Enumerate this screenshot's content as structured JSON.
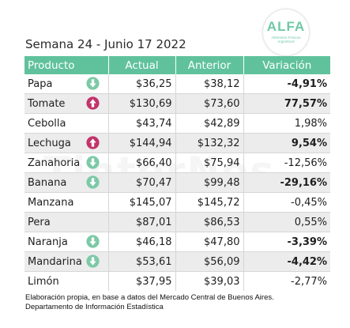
{
  "title": "Semana 24 - Junio 17 2022",
  "logo": {
    "word": "ALFA",
    "subtitle": "Alimentos Frescos Argentinos"
  },
  "watermark": "TinterNos",
  "colors": {
    "header_bg": "#60c29c",
    "arrow_down": "#7cc9a6",
    "arrow_up": "#c2336b",
    "logo": "#6fc9a5"
  },
  "table": {
    "headers": [
      "Producto",
      "Actual",
      "Anterior",
      "Variación"
    ],
    "rows": [
      {
        "product": "Papa",
        "actual": "$36,25",
        "previous": "$38,12",
        "variation": "-4,91%",
        "bold": true,
        "arrow": "down",
        "arrow_icon": "arrow-down-circle-icon",
        "arrow_left": 78
      },
      {
        "product": "Tomate",
        "actual": "$130,69",
        "previous": "$73,60",
        "variation": "77,57%",
        "bold": true,
        "arrow": "up",
        "arrow_icon": "arrow-up-circle-icon",
        "arrow_left": 78
      },
      {
        "product": "Cebolla",
        "actual": "$43,74",
        "previous": "$42,89",
        "variation": "1,98%",
        "bold": false,
        "arrow": "",
        "arrow_icon": ""
      },
      {
        "product": "Lechuga",
        "actual": "$144,94",
        "previous": "$132,32",
        "variation": "9,54%",
        "bold": true,
        "arrow": "up",
        "arrow_icon": "arrow-up-circle-icon",
        "arrow_left": 78
      },
      {
        "product": "Zanahoria",
        "actual": "$66,40",
        "previous": "$75,94",
        "variation": "-12,56%",
        "bold": false,
        "arrow": "down",
        "arrow_icon": "arrow-down-circle-icon",
        "arrow_left": 78
      },
      {
        "product": "Banana",
        "actual": "$70,47",
        "previous": "$99,48",
        "variation": "-29,16%",
        "bold": true,
        "arrow": "down",
        "arrow_icon": "arrow-down-circle-icon",
        "arrow_left": 78
      },
      {
        "product": "Manzana",
        "actual": "$145,07",
        "previous": "$145,72",
        "variation": "-0,45%",
        "bold": false,
        "arrow": "",
        "arrow_icon": ""
      },
      {
        "product": "Pera",
        "actual": "$87,01",
        "previous": "$86,53",
        "variation": "0,55%",
        "bold": false,
        "arrow": "",
        "arrow_icon": ""
      },
      {
        "product": "Naranja",
        "actual": "$46,18",
        "previous": "$47,80",
        "variation": "-3,39%",
        "bold": true,
        "arrow": "down",
        "arrow_icon": "arrow-down-circle-icon",
        "arrow_left": 78
      },
      {
        "product": "Mandarina",
        "actual": "$53,61",
        "previous": "$56,09",
        "variation": "-4,42%",
        "bold": true,
        "arrow": "down",
        "arrow_icon": "arrow-down-circle-icon",
        "arrow_left": 78
      },
      {
        "product": "Limón",
        "actual": "$37,95",
        "previous": "$39,03",
        "variation": "-2,77%",
        "bold": false,
        "arrow": "",
        "arrow_icon": ""
      }
    ]
  },
  "footnote": {
    "line1": "Elaboración propia, en base a datos del Mercado Central de Buenos Aires.",
    "line2": "Departamento de Información Estadística"
  }
}
